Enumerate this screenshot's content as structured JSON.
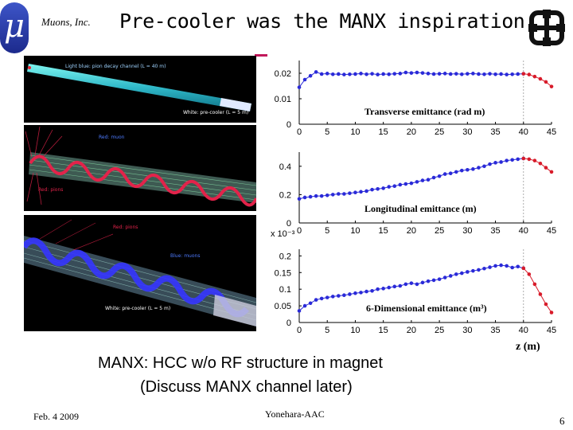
{
  "header": {
    "logo_glyph": "μ",
    "company": "Muons, Inc.",
    "title": "Pre-cooler was the MANX inspiration"
  },
  "simulations": [
    {
      "labels": [
        "Light blue: pion decay channel (L = 40 m)",
        "White: pre-cooler (L = 5 m)"
      ]
    },
    {
      "labels": [
        "Red: muon",
        "Red: pions"
      ]
    },
    {
      "labels": [
        "Red: pions",
        "Blue: muons",
        "White: pre-cooler (L = 5 m)"
      ]
    }
  ],
  "chart_data": [
    {
      "type": "line",
      "title": "Transverse emittance (rad m)",
      "xlim": [
        0,
        45
      ],
      "ylim": [
        0,
        0.025
      ],
      "xticks": [
        "0",
        "5",
        "10",
        "15",
        "20",
        "25",
        "30",
        "35",
        "40",
        "45"
      ],
      "yticks": [
        {
          "v": 0,
          "t": "0"
        },
        {
          "v": 0.01,
          "t": "0.01"
        },
        {
          "v": 0.02,
          "t": "0.02"
        }
      ],
      "series": [
        {
          "color": "#2a2ad8",
          "x": [
            0,
            1,
            2,
            3,
            4,
            5,
            6,
            7,
            8,
            9,
            10,
            11,
            12,
            13,
            14,
            15,
            16,
            17,
            18,
            19,
            20,
            21,
            22,
            23,
            24,
            25,
            26,
            27,
            28,
            29,
            30,
            31,
            32,
            33,
            34,
            35,
            36,
            37,
            38,
            39,
            40
          ],
          "y": [
            0.0145,
            0.0175,
            0.019,
            0.0205,
            0.0197,
            0.0199,
            0.0196,
            0.0197,
            0.0195,
            0.0196,
            0.0197,
            0.0199,
            0.0196,
            0.0198,
            0.0195,
            0.0197,
            0.0196,
            0.0198,
            0.0199,
            0.0203,
            0.0201,
            0.0203,
            0.0201,
            0.0199,
            0.0197,
            0.0198,
            0.0199,
            0.0197,
            0.0198,
            0.0196,
            0.0198,
            0.0199,
            0.0197,
            0.0196,
            0.0198,
            0.0196,
            0.0197,
            0.0195,
            0.0196,
            0.0197,
            0.0198
          ]
        },
        {
          "color": "#d81b2a",
          "x": [
            40,
            41,
            42,
            43,
            44,
            45
          ],
          "y": [
            0.0198,
            0.0195,
            0.0187,
            0.0178,
            0.0166,
            0.0148
          ]
        }
      ]
    },
    {
      "type": "line",
      "title": "Longitudinal emittance (m)",
      "xlim": [
        0,
        45
      ],
      "ylim": [
        0,
        0.5
      ],
      "xticks": [
        "0",
        "5",
        "10",
        "15",
        "20",
        "25",
        "30",
        "35",
        "40",
        "45"
      ],
      "yticks": [
        {
          "v": 0,
          "t": "0"
        },
        {
          "v": 0.2,
          "t": "0.2"
        },
        {
          "v": 0.4,
          "t": "0.4"
        }
      ],
      "series": [
        {
          "color": "#2a2ad8",
          "x": [
            0,
            1,
            2,
            3,
            4,
            5,
            6,
            7,
            8,
            9,
            10,
            11,
            12,
            13,
            14,
            15,
            16,
            17,
            18,
            19,
            20,
            21,
            22,
            23,
            24,
            25,
            26,
            27,
            28,
            29,
            30,
            31,
            32,
            33,
            34,
            35,
            36,
            37,
            38,
            39,
            40
          ],
          "y": [
            0.17,
            0.18,
            0.185,
            0.19,
            0.19,
            0.195,
            0.2,
            0.205,
            0.205,
            0.21,
            0.215,
            0.22,
            0.225,
            0.235,
            0.24,
            0.245,
            0.255,
            0.26,
            0.27,
            0.275,
            0.28,
            0.29,
            0.3,
            0.305,
            0.32,
            0.33,
            0.345,
            0.35,
            0.36,
            0.37,
            0.375,
            0.38,
            0.39,
            0.4,
            0.415,
            0.425,
            0.43,
            0.44,
            0.445,
            0.45,
            0.455
          ]
        },
        {
          "color": "#d81b2a",
          "x": [
            40,
            41,
            42,
            43,
            44,
            45
          ],
          "y": [
            0.455,
            0.45,
            0.44,
            0.42,
            0.39,
            0.36
          ]
        }
      ]
    },
    {
      "type": "line",
      "title": "6-Dimensional emittance (m³)",
      "scale_label": "x 10⁻³",
      "xlabel": "z (m)",
      "xlim": [
        0,
        45
      ],
      "ylim": [
        0,
        0.22
      ],
      "xticks": [
        "0",
        "5",
        "10",
        "15",
        "20",
        "25",
        "30",
        "35",
        "40",
        "45"
      ],
      "yticks": [
        {
          "v": 0,
          "t": "0"
        },
        {
          "v": 0.05,
          "t": "0.05"
        },
        {
          "v": 0.1,
          "t": "0.1"
        },
        {
          "v": 0.15,
          "t": "0.15"
        },
        {
          "v": 0.2,
          "t": "0.2"
        }
      ],
      "series": [
        {
          "color": "#2a2ad8",
          "x": [
            0,
            1,
            2,
            3,
            4,
            5,
            6,
            7,
            8,
            9,
            10,
            11,
            12,
            13,
            14,
            15,
            16,
            17,
            18,
            19,
            20,
            21,
            22,
            23,
            24,
            25,
            26,
            27,
            28,
            29,
            30,
            31,
            32,
            33,
            34,
            35,
            36,
            37,
            38,
            39,
            40
          ],
          "y": [
            0.035,
            0.05,
            0.058,
            0.068,
            0.072,
            0.075,
            0.078,
            0.08,
            0.082,
            0.085,
            0.088,
            0.09,
            0.093,
            0.095,
            0.1,
            0.102,
            0.105,
            0.108,
            0.11,
            0.115,
            0.118,
            0.115,
            0.12,
            0.124,
            0.127,
            0.13,
            0.135,
            0.14,
            0.145,
            0.148,
            0.152,
            0.155,
            0.158,
            0.162,
            0.166,
            0.17,
            0.172,
            0.17,
            0.165,
            0.168,
            0.163
          ]
        },
        {
          "color": "#d81b2a",
          "x": [
            40,
            41,
            42,
            43,
            44,
            45
          ],
          "y": [
            0.163,
            0.145,
            0.115,
            0.085,
            0.055,
            0.03
          ]
        }
      ]
    }
  ],
  "captions": {
    "line1": "MANX: HCC w/o RF structure in magnet",
    "line2": "(Discuss MANX channel later)"
  },
  "footer": {
    "date": "Feb. 4 2009",
    "author": "Yonehara-AAC",
    "page": "6"
  },
  "colors": {
    "accent": "#c2185b",
    "logo_blue": "#1c2a8c",
    "series_blue": "#2a2ad8",
    "series_red": "#d81b2a"
  }
}
